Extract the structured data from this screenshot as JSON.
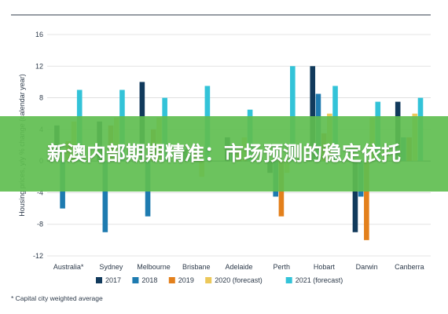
{
  "colors": {
    "2017": "#113a5c",
    "2018": "#1e7bb0",
    "2019": "#e3801c",
    "2020 (forecast)": "#ecc85a",
    "2021 (forecast)": "#33c3d8",
    "grid": "#dcdcdc",
    "zero": "#2d3a4a",
    "banner": "#5fbe50"
  },
  "banner": {
    "title": "新澳内部期期精准：市场预测的稳定依托"
  },
  "footnote": "* Capital city weighted average",
  "chart_data": {
    "type": "bar",
    "ylabel": "Housing prices, y/y % change (calendar year)",
    "ylim": [
      -12,
      16
    ],
    "yticks": [
      16,
      12,
      8,
      4,
      0,
      -4,
      -8,
      -12
    ],
    "grid": true,
    "legend_position": "bottom",
    "categories": [
      "Australia*",
      "Sydney",
      "Melbourne",
      "Brisbane",
      "Adelaide",
      "Perth",
      "Hobart",
      "Darwin",
      "Canberra"
    ],
    "series": [
      {
        "name": "2017",
        "values": [
          4.5,
          5.0,
          10.0,
          1.5,
          3.0,
          -1.5,
          12.0,
          -9.0,
          7.5
        ]
      },
      {
        "name": "2018",
        "values": [
          -6.0,
          -9.0,
          -7.0,
          1.0,
          2.0,
          -4.5,
          8.5,
          -4.5,
          3.0
        ]
      },
      {
        "name": "2019",
        "values": [
          2.5,
          4.5,
          4.0,
          1.0,
          1.5,
          -7.0,
          3.5,
          -10.0,
          3.0
        ]
      },
      {
        "name": "2020 (forecast)",
        "values": [
          5.0,
          5.5,
          5.5,
          -2.0,
          3.0,
          -1.5,
          6.0,
          5.5,
          6.0
        ]
      },
      {
        "name": "2021 (forecast)",
        "values": [
          9.0,
          9.0,
          8.0,
          9.5,
          6.5,
          12.0,
          9.5,
          7.5,
          8.0
        ]
      }
    ]
  }
}
